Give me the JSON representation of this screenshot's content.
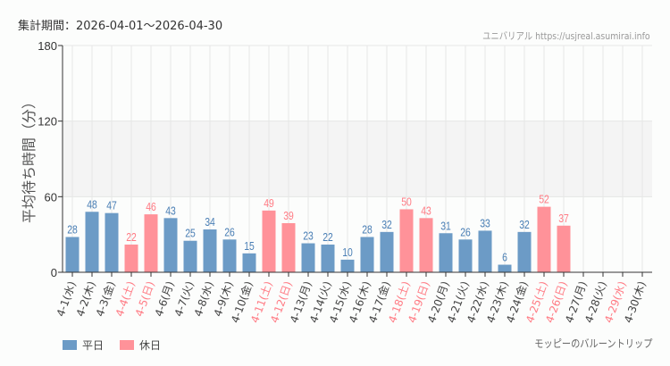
{
  "period_label": "集計期間：2026-04-01～2026-04-30",
  "credit": "ユニバリアル  https://usjreal.asumirai.info",
  "attraction_name": "モッピーのバルーントリップ",
  "colors": {
    "weekday": "#6c9bc6",
    "holiday": "#ff9299",
    "weekday_label": "#4a7fb5",
    "holiday_label": "#ff7b84",
    "band": "#f4f4f4"
  },
  "chart_data": {
    "type": "bar",
    "ylabel": "平均待ち時間（分）",
    "ylim": [
      0,
      180
    ],
    "yticks": [
      0,
      60,
      120,
      180
    ],
    "grid": true,
    "shaded_band": [
      60,
      120
    ],
    "legend_placement": "bottom-left",
    "legend": [
      {
        "name": "平日",
        "color": "#6c9bc6"
      },
      {
        "name": "休日",
        "color": "#ff9299"
      }
    ],
    "categories": [
      "4-1(水)",
      "4-2(木)",
      "4-3(金)",
      "4-4(土)",
      "4-5(日)",
      "4-6(月)",
      "4-7(火)",
      "4-8(水)",
      "4-9(木)",
      "4-10(金)",
      "4-11(土)",
      "4-12(日)",
      "4-13(月)",
      "4-14(火)",
      "4-15(水)",
      "4-16(木)",
      "4-17(金)",
      "4-18(土)",
      "4-19(日)",
      "4-20(月)",
      "4-21(火)",
      "4-22(水)",
      "4-23(木)",
      "4-24(金)",
      "4-25(土)",
      "4-26(日)",
      "4-27(月)",
      "4-28(火)",
      "4-29(水)",
      "4-30(木)"
    ],
    "holiday": [
      false,
      false,
      false,
      true,
      true,
      false,
      false,
      false,
      false,
      false,
      true,
      true,
      false,
      false,
      false,
      false,
      false,
      true,
      true,
      false,
      false,
      false,
      false,
      false,
      true,
      true,
      false,
      false,
      true,
      false
    ],
    "values": [
      28,
      48,
      47,
      22,
      46,
      43,
      25,
      34,
      26,
      15,
      49,
      39,
      23,
      22,
      10,
      28,
      32,
      50,
      43,
      31,
      26,
      33,
      6,
      32,
      52,
      37,
      null,
      null,
      null,
      null
    ]
  }
}
